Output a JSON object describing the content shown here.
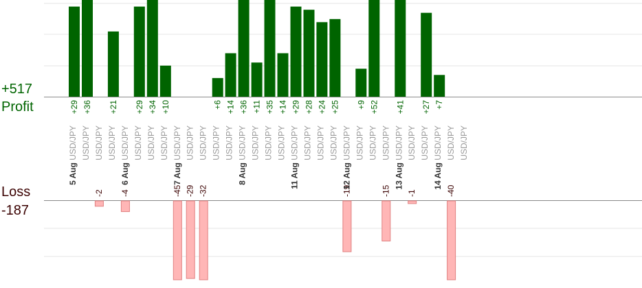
{
  "summary": {
    "profit_total": "+517",
    "profit_label": "Profit",
    "loss_label": "Loss",
    "loss_total": "-187"
  },
  "colors": {
    "profit_bar": "#006400",
    "loss_bar": "#ffb6b6",
    "loss_bar_stroke": "#e08080",
    "profit_text": "#006400",
    "loss_text": "#3a0000",
    "grid": "#e6e6e6",
    "axis": "#888888",
    "date_text": "#333333",
    "symbol_text": "#999999"
  },
  "chart_data": {
    "type": "bar",
    "grid": true,
    "profit_ylim": [
      0,
      30
    ],
    "loss_ylim": [
      -30,
      0
    ],
    "x": [
      {
        "date": "5 Aug",
        "symbol": "USD/JPY",
        "profit": 29,
        "loss": null
      },
      {
        "date": "",
        "symbol": "USD/JPY",
        "profit": 36,
        "loss": null
      },
      {
        "date": "",
        "symbol": "USD/JPY",
        "profit": null,
        "loss": -2
      },
      {
        "date": "",
        "symbol": "USD/JPY",
        "profit": 21,
        "loss": null
      },
      {
        "date": "6 Aug",
        "symbol": "USD/JPY",
        "profit": null,
        "loss": -4
      },
      {
        "date": "",
        "symbol": "USD/JPY",
        "profit": 29,
        "loss": null
      },
      {
        "date": "",
        "symbol": "USD/JPY",
        "profit": 34,
        "loss": null
      },
      {
        "date": "",
        "symbol": "USD/JPY",
        "profit": 10,
        "loss": null
      },
      {
        "date": "7 Aug",
        "symbol": "USD/JPY",
        "profit": null,
        "loss": -45
      },
      {
        "date": "",
        "symbol": "USD/JPY",
        "profit": null,
        "loss": -29
      },
      {
        "date": "",
        "symbol": "USD/JPY",
        "profit": null,
        "loss": -32
      },
      {
        "date": "",
        "symbol": "USD/JPY",
        "profit": 6,
        "loss": null
      },
      {
        "date": "",
        "symbol": "USD/JPY",
        "profit": 14,
        "loss": null
      },
      {
        "date": "8 Aug",
        "symbol": "USD/JPY",
        "profit": 36,
        "loss": null
      },
      {
        "date": "",
        "symbol": "USD/JPY",
        "profit": 11,
        "loss": null
      },
      {
        "date": "",
        "symbol": "USD/JPY",
        "profit": 35,
        "loss": null
      },
      {
        "date": "",
        "symbol": "USD/JPY",
        "profit": 14,
        "loss": null
      },
      {
        "date": "11 Aug",
        "symbol": "USD/JPY",
        "profit": 29,
        "loss": null
      },
      {
        "date": "",
        "symbol": "USD/JPY",
        "profit": 28,
        "loss": null
      },
      {
        "date": "",
        "symbol": "USD/JPY",
        "profit": 24,
        "loss": null
      },
      {
        "date": "",
        "symbol": "USD/JPY",
        "profit": 25,
        "loss": null
      },
      {
        "date": "12 Aug",
        "symbol": "USD/JPY",
        "profit": null,
        "loss": -19
      },
      {
        "date": "",
        "symbol": "USD/JPY",
        "profit": 9,
        "loss": null
      },
      {
        "date": "",
        "symbol": "USD/JPY",
        "profit": 52,
        "loss": null
      },
      {
        "date": "",
        "symbol": "USD/JPY",
        "profit": null,
        "loss": -15
      },
      {
        "date": "13 Aug",
        "symbol": "USD/JPY",
        "profit": 41,
        "loss": null
      },
      {
        "date": "",
        "symbol": "USD/JPY",
        "profit": null,
        "loss": -1
      },
      {
        "date": "",
        "symbol": "USD/JPY",
        "profit": 27,
        "loss": null
      },
      {
        "date": "14 Aug",
        "symbol": "USD/JPY",
        "profit": 7,
        "loss": null
      },
      {
        "date": "",
        "symbol": "USD/JPY",
        "profit": null,
        "loss": -40
      },
      {
        "date": "",
        "symbol": "USD/JPY",
        "profit": null,
        "loss": null
      }
    ]
  }
}
